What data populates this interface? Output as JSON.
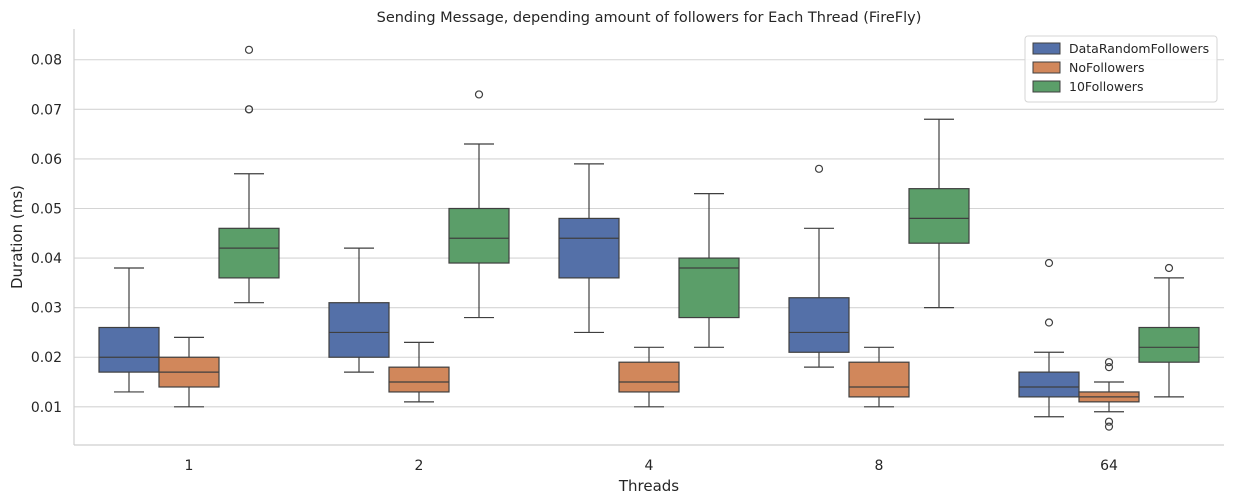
{
  "chart_data": {
    "type": "box",
    "title": "Sending Message, depending amount of followers for Each Thread (FireFly)",
    "xlabel": "Threads",
    "ylabel": "Duration (ms)",
    "categories": [
      "1",
      "2",
      "4",
      "8",
      "64"
    ],
    "ylim": [
      0.0023,
      0.0862
    ],
    "yticks": [
      0.01,
      0.02,
      0.03,
      0.04,
      0.05,
      0.06,
      0.07,
      0.08
    ],
    "ytick_labels": [
      "0.01",
      "0.02",
      "0.03",
      "0.04",
      "0.05",
      "0.06",
      "0.07",
      "0.08"
    ],
    "grid": "horizontal",
    "legend_position": "top-right",
    "series": [
      {
        "name": "DataRandomFollowers",
        "color": "#5470a8",
        "boxes": [
          {
            "whisker_low": 0.013,
            "q1": 0.017,
            "median": 0.02,
            "q3": 0.026,
            "whisker_high": 0.038,
            "outliers": []
          },
          {
            "whisker_low": 0.017,
            "q1": 0.02,
            "median": 0.025,
            "q3": 0.031,
            "whisker_high": 0.042,
            "outliers": []
          },
          {
            "whisker_low": 0.025,
            "q1": 0.036,
            "median": 0.044,
            "q3": 0.048,
            "whisker_high": 0.059,
            "outliers": []
          },
          {
            "whisker_low": 0.018,
            "q1": 0.021,
            "median": 0.025,
            "q3": 0.032,
            "whisker_high": 0.046,
            "outliers": [
              0.058
            ]
          },
          {
            "whisker_low": 0.008,
            "q1": 0.012,
            "median": 0.014,
            "q3": 0.017,
            "whisker_high": 0.021,
            "outliers": [
              0.027,
              0.039
            ]
          }
        ]
      },
      {
        "name": "NoFollowers",
        "color": "#d1875b",
        "boxes": [
          {
            "whisker_low": 0.01,
            "q1": 0.014,
            "median": 0.017,
            "q3": 0.02,
            "whisker_high": 0.024,
            "outliers": []
          },
          {
            "whisker_low": 0.011,
            "q1": 0.013,
            "median": 0.015,
            "q3": 0.018,
            "whisker_high": 0.023,
            "outliers": []
          },
          {
            "whisker_low": 0.01,
            "q1": 0.013,
            "median": 0.015,
            "q3": 0.019,
            "whisker_high": 0.022,
            "outliers": []
          },
          {
            "whisker_low": 0.01,
            "q1": 0.012,
            "median": 0.014,
            "q3": 0.019,
            "whisker_high": 0.022,
            "outliers": []
          },
          {
            "whisker_low": 0.009,
            "q1": 0.011,
            "median": 0.012,
            "q3": 0.013,
            "whisker_high": 0.015,
            "outliers": [
              0.018,
              0.019,
              0.007,
              0.006
            ]
          }
        ]
      },
      {
        "name": "10Followers",
        "color": "#5b9e69",
        "boxes": [
          {
            "whisker_low": 0.031,
            "q1": 0.036,
            "median": 0.042,
            "q3": 0.046,
            "whisker_high": 0.057,
            "outliers": [
              0.07,
              0.07,
              0.082
            ]
          },
          {
            "whisker_low": 0.028,
            "q1": 0.039,
            "median": 0.044,
            "q3": 0.05,
            "whisker_high": 0.063,
            "outliers": [
              0.073
            ]
          },
          {
            "whisker_low": 0.022,
            "q1": 0.028,
            "median": 0.038,
            "q3": 0.04,
            "whisker_high": 0.053,
            "outliers": []
          },
          {
            "whisker_low": 0.03,
            "q1": 0.043,
            "median": 0.048,
            "q3": 0.054,
            "whisker_high": 0.068,
            "outliers": []
          },
          {
            "whisker_low": 0.012,
            "q1": 0.019,
            "median": 0.022,
            "q3": 0.026,
            "whisker_high": 0.036,
            "outliers": [
              0.038
            ]
          }
        ]
      }
    ]
  }
}
